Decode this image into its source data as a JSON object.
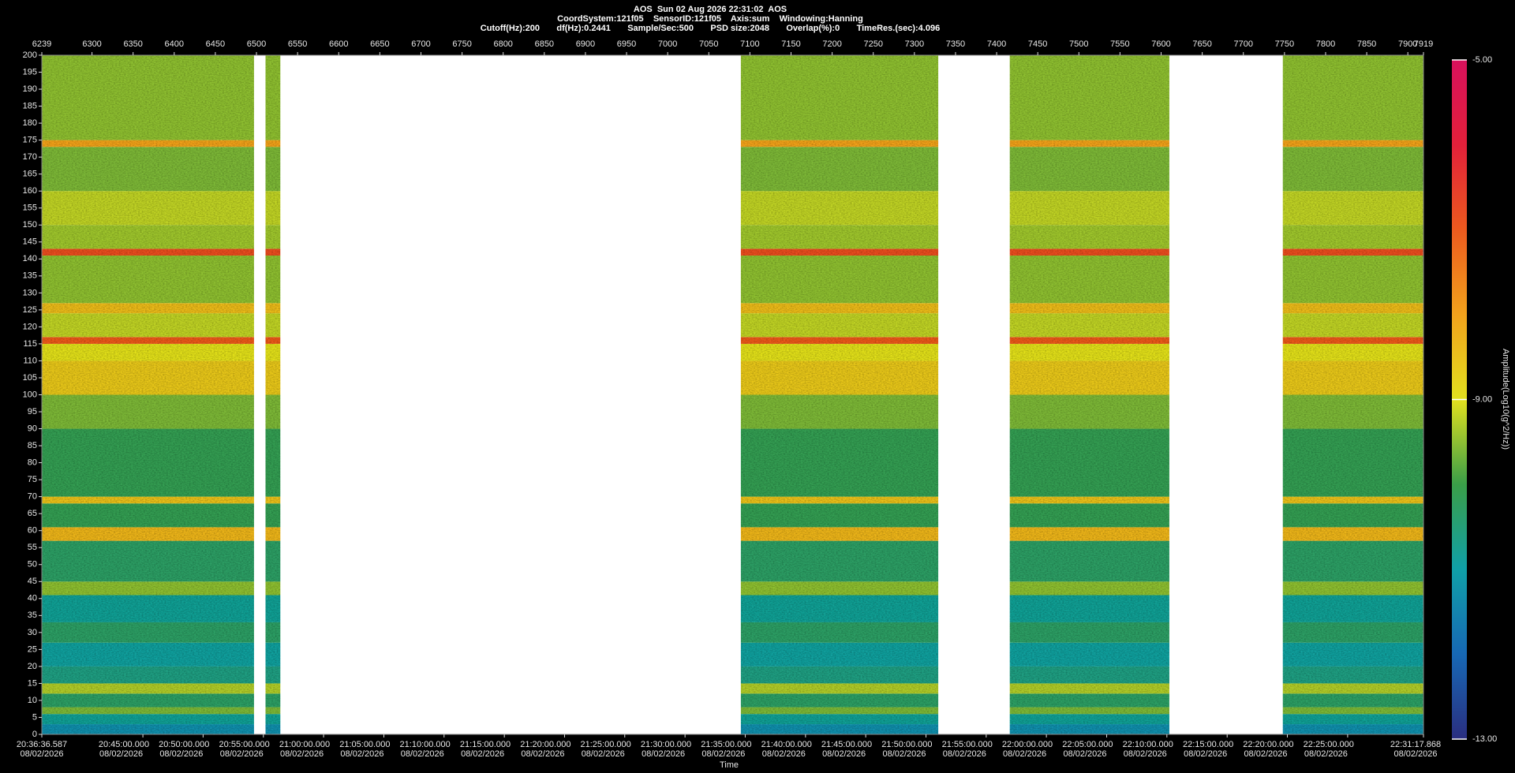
{
  "chart_data": {
    "type": "spectrogram",
    "title": "AOS  Sun 02 Aug 2026 22:31:02  AOS",
    "subtitle": [
      "CoordSystem:121f05    SensorID:121f05    Axis:sum    Windowing:Hanning",
      "Cutoff(Hz):200       df(Hz):0.2441       Sample/Sec:500       PSD size:2048       Overlap(%):0       TimeRes.(sec):4.096"
    ],
    "xlabel": "Time",
    "colorbar_label": "Amplitude(Log10(g^2/Hz))",
    "xlim": [
      6239,
      7919
    ],
    "xticks": [
      6239,
      6300,
      6350,
      6400,
      6450,
      6500,
      6550,
      6600,
      6650,
      6700,
      6750,
      6800,
      6850,
      6900,
      6950,
      7000,
      7050,
      7100,
      7150,
      7200,
      7250,
      7300,
      7350,
      7400,
      7450,
      7500,
      7550,
      7600,
      7650,
      7700,
      7750,
      7800,
      7850,
      7900,
      7919
    ],
    "time_ticks": [
      {
        "value": 6239,
        "label": "20:36:36.587"
      },
      {
        "value": 6361.9,
        "label": "20:45:00.000"
      },
      {
        "value": 6435.1,
        "label": "20:50:00.000"
      },
      {
        "value": 6508.4,
        "label": "20:55:00.000"
      },
      {
        "value": 6581.6,
        "label": "21:00:00.000"
      },
      {
        "value": 6654.9,
        "label": "21:05:00.000"
      },
      {
        "value": 6728.1,
        "label": "21:10:00.000"
      },
      {
        "value": 6801.4,
        "label": "21:15:00.000"
      },
      {
        "value": 6874.6,
        "label": "21:20:00.000"
      },
      {
        "value": 6947.8,
        "label": "21:25:00.000"
      },
      {
        "value": 7021.1,
        "label": "21:30:00.000"
      },
      {
        "value": 7094.3,
        "label": "21:35:00.000"
      },
      {
        "value": 7167.6,
        "label": "21:40:00.000"
      },
      {
        "value": 7240.8,
        "label": "21:45:00.000"
      },
      {
        "value": 7314.1,
        "label": "21:50:00.000"
      },
      {
        "value": 7387.3,
        "label": "21:55:00.000"
      },
      {
        "value": 7460.5,
        "label": "22:00:00.000"
      },
      {
        "value": 7533.8,
        "label": "22:05:00.000"
      },
      {
        "value": 7607.0,
        "label": "22:10:00.000"
      },
      {
        "value": 7680.3,
        "label": "22:15:00.000"
      },
      {
        "value": 7753.5,
        "label": "22:20:00.000"
      },
      {
        "value": 7826.8,
        "label": "22:25:00.000"
      },
      {
        "value": 7919,
        "label": "22:31:17.868"
      }
    ],
    "time_dates": [
      "08/02/2026",
      "08/02/2026",
      "08/02/2026",
      "08/02/2026",
      "08/02/2026",
      "08/02/2026",
      "08/02/2026",
      "08/02/2026",
      "08/02/2026",
      "08/02/2026",
      "08/02/2026",
      "08/02/2026",
      "08/02/2026",
      "08/02/2026",
      "08/02/2026",
      "08/02/2026",
      "08/02/2026",
      "08/02/2026",
      "08/02/2026",
      "08/02/2026",
      "08/02/2026",
      "08/02/2026",
      "08/02/2026"
    ],
    "ylim": [
      0,
      200
    ],
    "yticks": [
      0,
      5,
      10,
      15,
      20,
      25,
      30,
      35,
      40,
      45,
      50,
      55,
      60,
      65,
      70,
      75,
      80,
      85,
      90,
      95,
      100,
      105,
      110,
      115,
      120,
      125,
      130,
      135,
      140,
      145,
      150,
      155,
      160,
      165,
      170,
      175,
      180,
      185,
      190,
      195,
      200
    ],
    "data_segments": [
      [
        6239,
        6497
      ],
      [
        6511,
        6529
      ],
      [
        7089,
        7329
      ],
      [
        7416,
        7610
      ],
      [
        7748,
        7919
      ]
    ],
    "freq_edges": [
      0,
      3,
      6,
      8,
      12,
      15,
      20,
      27,
      33,
      41,
      45,
      57,
      61,
      68,
      70,
      90,
      100,
      110,
      115,
      117,
      124,
      127,
      141,
      143,
      150,
      160,
      173,
      175,
      200
    ],
    "values": [
      -11.3,
      -10.8,
      -9.6,
      -10.3,
      -9.3,
      -10.6,
      -10.9,
      -10.3,
      -10.8,
      -9.5,
      -10.3,
      -8.3,
      -10.1,
      -8.5,
      -10.1,
      -9.6,
      -8.6,
      -9.0,
      -7.0,
      -9.2,
      -8.4,
      -9.5,
      -6.8,
      -9.4,
      -9.2,
      -9.6,
      -8.0,
      -9.5
    ],
    "clim": [
      -13,
      -5
    ],
    "cticks": [
      {
        "value": -5,
        "label": "-5.00"
      },
      {
        "value": -9,
        "label": "-9.00"
      },
      {
        "value": -13,
        "label": "-13.00"
      }
    ],
    "colormap": [
      "#2a2e80",
      "#1768b4",
      "#10a0a8",
      "#3a9e48",
      "#e2e01e",
      "#f2a21c",
      "#ec5a1e",
      "#e2203a",
      "#d8115c"
    ]
  }
}
